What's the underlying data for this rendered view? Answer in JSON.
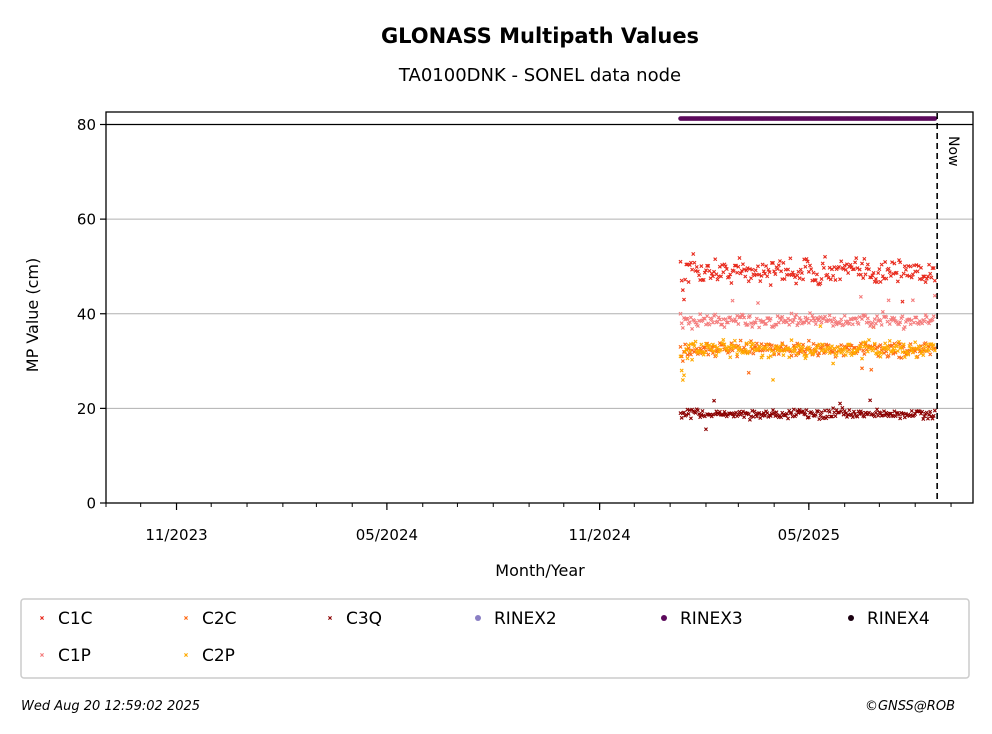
{
  "title": "GLONASS Multipath Values",
  "subtitle": "TA0100DNK - SONEL data node",
  "footer": {
    "timestamp": "Wed Aug 20 12:59:02 2025",
    "credit": "©GNSS@ROB"
  },
  "now_label": "Now",
  "chart_data": {
    "type": "scatter",
    "xlabel": "Month/Year",
    "ylabel": "MP Value (cm)",
    "x_range": [
      "2023-09-01",
      "2025-09-20"
    ],
    "ylim": [
      0,
      80
    ],
    "y_ticks": [
      0,
      20,
      40,
      60,
      80
    ],
    "x_ticks": [
      {
        "date": "2023-11-01",
        "label": "11/2023"
      },
      {
        "date": "2024-05-01",
        "label": "05/2024"
      },
      {
        "date": "2024-11-01",
        "label": "11/2024"
      },
      {
        "date": "2025-05-01",
        "label": "05/2025"
      }
    ],
    "grid": "horizontal",
    "now_date": "2025-08-20",
    "legend_placement": "bottom",
    "series": [
      {
        "name": "C1C",
        "color": "#e8291c",
        "marker": "x",
        "date_start": "2025-01-10",
        "date_end": "2025-08-18",
        "typical": 49,
        "spread": 2.5,
        "first_values": [
          51,
          47,
          45,
          43
        ]
      },
      {
        "name": "C2C",
        "color": "#ff6a13",
        "marker": "x",
        "date_start": "2025-01-10",
        "date_end": "2025-08-18",
        "typical": 32.5,
        "spread": 1.4,
        "first_values": [
          33,
          31,
          30
        ]
      },
      {
        "name": "C3Q",
        "color": "#8b0000",
        "marker": "x",
        "date_start": "2025-01-10",
        "date_end": "2025-08-18",
        "typical": 18.8,
        "spread": 1.0,
        "first_values": [
          19,
          18
        ]
      },
      {
        "name": "RINEX2",
        "color": "#8a7fc4",
        "marker": "o",
        "date_start": "",
        "date_end": "",
        "typical": null,
        "spread": 0,
        "first_values": []
      },
      {
        "name": "RINEX3",
        "color": "#5c0a5c",
        "marker": "o",
        "date_start": "2025-01-10",
        "date_end": "2025-08-18",
        "typical": 82,
        "spread": 0,
        "first_values": []
      },
      {
        "name": "RINEX4",
        "color": "#1a0010",
        "marker": "o",
        "date_start": "",
        "date_end": "",
        "typical": null,
        "spread": 0,
        "first_values": []
      },
      {
        "name": "C1P",
        "color": "#f47c7c",
        "marker": "x",
        "date_start": "2025-01-10",
        "date_end": "2025-08-18",
        "typical": 38.5,
        "spread": 1.3,
        "first_values": [
          40,
          38,
          37
        ]
      },
      {
        "name": "C2P",
        "color": "#ffaa00",
        "marker": "x",
        "date_start": "2025-01-10",
        "date_end": "2025-08-18",
        "typical": 32.5,
        "spread": 1.6,
        "first_values": [
          31,
          28,
          26,
          27
        ]
      }
    ]
  }
}
